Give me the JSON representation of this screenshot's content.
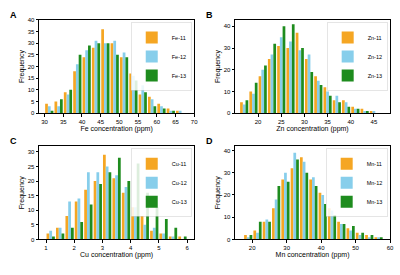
{
  "chart_data": [
    {
      "type": "histogram",
      "title": "A",
      "x_label": "Fe concentration (ppm)",
      "y_label": "Frequency",
      "bins": [
        30,
        32.5,
        35,
        37.5,
        40,
        42.5,
        45,
        47.5,
        50,
        52.5,
        55,
        57.5,
        60,
        62.5,
        65,
        67.5
      ],
      "series": [
        {
          "name": "Fe-11",
          "color": "#f5a623",
          "values": [
            4,
            5,
            9,
            18,
            24,
            28,
            36,
            30,
            24,
            17,
            8,
            7,
            4,
            2,
            1
          ]
        },
        {
          "name": "Fe-12",
          "color": "#87ceeb",
          "values": [
            3,
            3,
            8,
            21,
            27,
            31,
            30,
            31,
            26,
            16,
            12,
            6,
            3,
            1,
            1
          ]
        },
        {
          "name": "Fe-13",
          "color": "#1e8c1e",
          "values": [
            1,
            6,
            10,
            25,
            29,
            30,
            30,
            25,
            24,
            14,
            9,
            3,
            2,
            1,
            0
          ]
        }
      ],
      "xlim": [
        28.5,
        70
      ],
      "xticks": [
        30,
        35,
        40,
        45,
        50,
        55,
        60,
        65,
        70
      ],
      "ylim": [
        0,
        40
      ],
      "yticks": [
        0,
        5,
        10,
        15,
        20,
        25,
        30,
        35,
        40
      ],
      "grid": false,
      "legend": "upper right"
    },
    {
      "type": "histogram",
      "title": "B",
      "x_label": "Zn concentration (ppm)",
      "y_label": "Frequency",
      "bins": [
        16,
        18,
        20,
        22,
        24,
        26,
        28,
        30,
        32,
        34,
        36,
        38,
        40,
        42,
        44,
        46
      ],
      "series": [
        {
          "name": "Zn-11",
          "color": "#f5a623",
          "values": [
            5,
            10,
            17,
            25,
            31,
            30,
            37,
            25,
            17,
            12,
            6,
            6,
            3,
            2,
            1
          ]
        },
        {
          "name": "Zn-12",
          "color": "#87ceeb",
          "values": [
            4,
            9,
            20,
            27,
            35,
            33,
            29,
            27,
            15,
            10,
            8,
            5,
            2,
            1,
            1
          ]
        },
        {
          "name": "Zn-13",
          "color": "#1e8c1e",
          "values": [
            6,
            14,
            22,
            32,
            40,
            41,
            30,
            19,
            13,
            8,
            5,
            3,
            2,
            1,
            0
          ]
        }
      ],
      "xlim": [
        15,
        48.5
      ],
      "xticks": [
        20,
        25,
        30,
        35,
        40,
        45
      ],
      "ylim": [
        0,
        43
      ],
      "yticks": [
        0,
        10,
        20,
        30,
        40
      ],
      "grid": false,
      "legend": "upper right"
    },
    {
      "type": "histogram",
      "title": "C",
      "x_label": "Cu concentration (ppm)",
      "y_label": "Frequency",
      "bins": [
        1,
        1.33,
        1.67,
        2,
        2.33,
        2.67,
        3,
        3.33,
        3.67,
        4,
        4.33,
        4.67,
        5,
        5.33,
        5.67,
        6
      ],
      "series": [
        {
          "name": "Cu-11",
          "color": "#f5a623",
          "values": [
            2,
            4,
            8,
            13,
            17,
            20,
            29,
            21,
            16,
            11,
            8,
            3,
            2,
            1,
            1
          ]
        },
        {
          "name": "Cu-12",
          "color": "#87ceeb",
          "values": [
            3,
            4,
            13,
            14,
            23,
            23,
            25,
            22,
            18,
            11,
            5,
            4,
            2,
            1,
            0
          ]
        },
        {
          "name": "Cu-13",
          "color": "#1e8c1e",
          "values": [
            1,
            2,
            4,
            6,
            12,
            19,
            23,
            28,
            20,
            26,
            16,
            11,
            7,
            4,
            1
          ]
        }
      ],
      "xlim": [
        0.75,
        6.25
      ],
      "xticks": [
        1,
        2,
        3,
        4,
        5,
        6
      ],
      "ylim": [
        0,
        32
      ],
      "yticks": [
        0,
        5,
        10,
        15,
        20,
        25,
        30
      ],
      "grid": false,
      "legend": "upper right"
    },
    {
      "type": "histogram",
      "title": "D",
      "x_label": "Mn concentration (ppm)",
      "y_label": "Frequency",
      "bins": [
        17.5,
        20.2,
        22.9,
        25.6,
        28.3,
        31,
        33.7,
        36.4,
        39.1,
        41.8,
        44.5,
        47.2,
        49.9,
        52.6,
        55.3,
        58
      ],
      "series": [
        {
          "name": "Mn-11",
          "color": "#f5a623",
          "values": [
            2,
            4,
            8,
            14,
            27,
            32,
            37,
            27,
            21,
            14,
            8,
            5,
            3,
            2,
            1
          ]
        },
        {
          "name": "Mn-12",
          "color": "#87ceeb",
          "values": [
            1,
            3,
            9,
            18,
            30,
            39,
            35,
            28,
            20,
            13,
            7,
            4,
            2,
            1,
            1
          ]
        },
        {
          "name": "Mn-13",
          "color": "#1e8c1e",
          "values": [
            2,
            8,
            8,
            24,
            26,
            36,
            30,
            24,
            16,
            11,
            7,
            6,
            3,
            2,
            1
          ]
        }
      ],
      "xlim": [
        15,
        60
      ],
      "xticks": [
        20,
        30,
        40,
        50,
        60
      ],
      "ylim": [
        0,
        42
      ],
      "yticks": [
        0,
        10,
        20,
        30,
        40
      ],
      "grid": false,
      "legend": "upper right"
    }
  ]
}
